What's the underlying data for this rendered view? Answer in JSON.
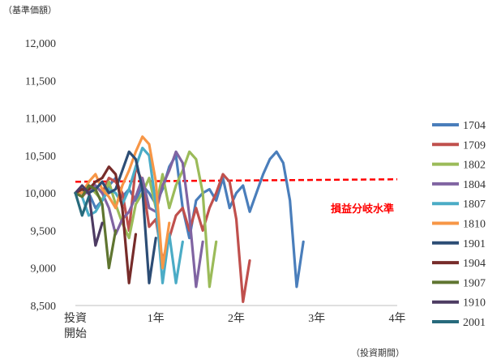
{
  "chart_data": {
    "type": "line",
    "ylabel": "（基準価額）",
    "xlabel": "（投資期間）",
    "ylim": [
      8500,
      12000
    ],
    "yticks": [
      8500,
      9000,
      9500,
      10000,
      10500,
      11000,
      11500,
      12000
    ],
    "ytick_labels": [
      "8,500",
      "9,000",
      "9,500",
      "10,000",
      "10,500",
      "11,000",
      "11,500",
      "12,000"
    ],
    "xlim": [
      0,
      48
    ],
    "xticks": [
      0,
      12,
      24,
      36,
      48
    ],
    "xtick_labels": [
      [
        "投資",
        "開始"
      ],
      [
        "1年"
      ],
      [
        "2年"
      ],
      [
        "3年"
      ],
      [
        "4年"
      ]
    ],
    "grid": false,
    "legend_position": "right",
    "breakeven": {
      "label": "損益分岐水準",
      "value": 10150,
      "color": "#ff0000"
    },
    "series": [
      {
        "name": "1704",
        "color": "#4a7ebb",
        "values": [
          10000,
          10050,
          10000,
          9800,
          9900,
          10100,
          10200,
          9950,
          10050,
          9900,
          10100,
          10000,
          9850,
          10050,
          10350,
          10500,
          9800,
          9400,
          9900,
          10000,
          10050,
          9900,
          10200,
          9800,
          10000,
          10100,
          9750,
          10000,
          10250,
          10450,
          10550,
          10400,
          9900,
          8750,
          9350
        ]
      },
      {
        "name": "1709",
        "color": "#c0504d",
        "values": [
          10000,
          9950,
          10050,
          10100,
          10000,
          10200,
          10150,
          10000,
          9500,
          10350,
          10150,
          9550,
          9650,
          9100,
          9400,
          9700,
          9800,
          9500,
          9800,
          9500,
          9800,
          10000,
          10250,
          10150,
          9650,
          8550,
          9100
        ]
      },
      {
        "name": "1802",
        "color": "#9bbb59",
        "values": [
          10000,
          9950,
          10100,
          10000,
          9900,
          10150,
          9850,
          9600,
          9400,
          9850,
          10000,
          10200,
          9800,
          10250,
          9800,
          10100,
          10300,
          10550,
          10450,
          10000,
          8750,
          9350
        ]
      },
      {
        "name": "1804",
        "color": "#8064a2",
        "values": [
          10000,
          10000,
          10000,
          10100,
          10000,
          9800,
          9450,
          9650,
          9750,
          9950,
          10200,
          9800,
          9750,
          10100,
          10300,
          10550,
          10400,
          9700,
          8750,
          9350
        ]
      },
      {
        "name": "1807",
        "color": "#4bacc6",
        "values": [
          10000,
          9950,
          9700,
          9750,
          9900,
          10050,
          10000,
          9850,
          10050,
          10350,
          10600,
          10500,
          9850,
          8800,
          9450,
          8800,
          9350
        ]
      },
      {
        "name": "1810",
        "color": "#f79646",
        "values": [
          10000,
          10000,
          10150,
          10250,
          10050,
          9950,
          9800,
          10100,
          10300,
          10550,
          10750,
          10650,
          10150,
          9000,
          9600
        ]
      },
      {
        "name": "1901",
        "color": "#2c4d75",
        "values": [
          10000,
          10050,
          10000,
          10050,
          10150,
          10000,
          10050,
          10300,
          10550,
          10450,
          10050,
          8800,
          9400
        ]
      },
      {
        "name": "1904",
        "color": "#772c2a",
        "values": [
          10000,
          10050,
          10050,
          10150,
          10200,
          10350,
          10250,
          9800,
          8800,
          9450
        ]
      },
      {
        "name": "1907",
        "color": "#5f7530",
        "values": [
          10000,
          9950,
          10100,
          10050,
          9850,
          9000,
          9500
        ]
      },
      {
        "name": "1910",
        "color": "#4d3b62",
        "values": [
          10000,
          10100,
          10000,
          9300,
          9600
        ]
      },
      {
        "name": "2001",
        "color": "#276a7c",
        "values": [
          10000,
          9700,
          9950
        ]
      }
    ]
  }
}
